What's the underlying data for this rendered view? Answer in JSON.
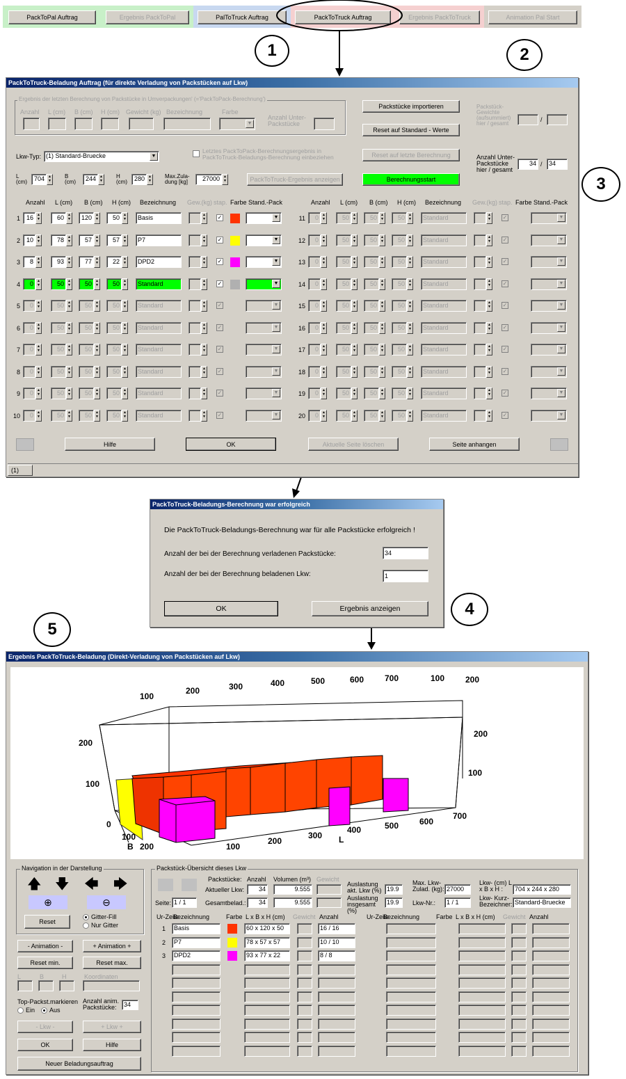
{
  "top_tabs": [
    "PackToPal Auftrag",
    "Ergebnis PackToPal",
    "PalToTruck Auftrag",
    "PackToTruck Auftrag",
    "Ergebnis PackToTruck",
    "Animation Pal Start"
  ],
  "callouts": [
    "1",
    "2",
    "3",
    "4",
    "5"
  ],
  "order": {
    "title": "PackToTruck-Beladung Auftrag (für direkte Verladung von Packstücken auf Lkw)",
    "prev_group": "Ergebnis der letzten Berechnung von Packstücke in Umverpackungen' (='PackToPack-Berechnung')",
    "prev_cols": [
      "Anzahl",
      "L (cm)",
      "B (cm)",
      "H (cm)",
      "Gewicht (kg)",
      "Bezeichnung",
      "Farbe",
      "Anzahl Unter-Packstücke"
    ],
    "btn_import": "Packstücke importieren",
    "btn_reset_std": "Reset auf Standard - Werte",
    "btn_reset_last": "Reset auf letzte Berechnung",
    "btn_calc": "Berechnungsstart",
    "btn_show_result": "PackToTruck-Ergebnis anzeigen",
    "weight_label": "Packstück-Gewichte (aufsummiert) hier / gesamt",
    "weight_sep": "/",
    "sub_label": "Anzahl Unter-Packstücke hier / gesamt",
    "sub_here": "34",
    "sub_total": "34",
    "sub_sep": "/",
    "truck_label": "Lkw-Typ:",
    "truck_value": "(1) Standard-Bruecke",
    "chk_label": "Letztes PackToPack-Berechnungsergebnis in PackToTruck-Beladungs-Berechnung einbeziehen",
    "dims": {
      "L_label": "L (cm)",
      "L": "704",
      "B_label": "B (cm)",
      "B": "244",
      "H_label": "H (cm)",
      "H": "280",
      "max_label": "Max.Zula-dung [kg]",
      "max": "27000"
    },
    "col_headers": [
      "Anzahl",
      "L (cm)",
      "B (cm)",
      "H (cm)",
      "Bezeichnung",
      "Gew.(kg)",
      "stap.",
      "Farbe",
      "Stand.-Pack"
    ],
    "rows": [
      {
        "n": "1",
        "anzahl": "16",
        "l": "60",
        "b": "120",
        "h": "50",
        "bez": "Basis",
        "color": "#ff3300",
        "state": "active"
      },
      {
        "n": "2",
        "anzahl": "10",
        "l": "78",
        "b": "57",
        "h": "57",
        "bez": "P7",
        "color": "#ffff00",
        "state": "active"
      },
      {
        "n": "3",
        "anzahl": "8",
        "l": "93",
        "b": "77",
        "h": "22",
        "bez": "DPD2",
        "color": "#ff00ff",
        "state": "active"
      },
      {
        "n": "4",
        "anzahl": "0",
        "l": "50",
        "b": "50",
        "h": "50",
        "bez": "Standard",
        "color": "#b0b0b0",
        "state": "green"
      },
      {
        "n": "5",
        "anzahl": "0",
        "l": "50",
        "b": "50",
        "h": "50",
        "bez": "Standard",
        "state": "dis"
      },
      {
        "n": "6",
        "anzahl": "0",
        "l": "50",
        "b": "50",
        "h": "50",
        "bez": "Standard",
        "state": "dis"
      },
      {
        "n": "7",
        "anzahl": "0",
        "l": "50",
        "b": "50",
        "h": "50",
        "bez": "Standard",
        "state": "dis"
      },
      {
        "n": "8",
        "anzahl": "0",
        "l": "50",
        "b": "50",
        "h": "50",
        "bez": "Standard",
        "state": "dis"
      },
      {
        "n": "9",
        "anzahl": "0",
        "l": "50",
        "b": "50",
        "h": "50",
        "bez": "Standard",
        "state": "dis"
      },
      {
        "n": "10",
        "anzahl": "0",
        "l": "50",
        "b": "50",
        "h": "50",
        "bez": "Standard",
        "state": "dis"
      },
      {
        "n": "11",
        "anzahl": "0",
        "l": "50",
        "b": "50",
        "h": "50",
        "bez": "Standard",
        "state": "dis"
      },
      {
        "n": "12",
        "anzahl": "0",
        "l": "50",
        "b": "50",
        "h": "50",
        "bez": "Standard",
        "state": "dis"
      },
      {
        "n": "13",
        "anzahl": "0",
        "l": "50",
        "b": "50",
        "h": "50",
        "bez": "Standard",
        "state": "dis"
      },
      {
        "n": "14",
        "anzahl": "0",
        "l": "50",
        "b": "50",
        "h": "50",
        "bez": "Standard",
        "state": "dis"
      },
      {
        "n": "15",
        "anzahl": "0",
        "l": "50",
        "b": "50",
        "h": "50",
        "bez": "Standard",
        "state": "dis"
      },
      {
        "n": "16",
        "anzahl": "0",
        "l": "50",
        "b": "50",
        "h": "50",
        "bez": "Standard",
        "state": "dis"
      },
      {
        "n": "17",
        "anzahl": "0",
        "l": "50",
        "b": "50",
        "h": "50",
        "bez": "Standard",
        "state": "dis"
      },
      {
        "n": "18",
        "anzahl": "0",
        "l": "50",
        "b": "50",
        "h": "50",
        "bez": "Standard",
        "state": "dis"
      },
      {
        "n": "19",
        "anzahl": "0",
        "l": "50",
        "b": "50",
        "h": "50",
        "bez": "Standard",
        "state": "dis"
      },
      {
        "n": "20",
        "anzahl": "0",
        "l": "50",
        "b": "50",
        "h": "50",
        "bez": "Standard",
        "state": "dis"
      }
    ],
    "btn_help": "Hilfe",
    "btn_ok": "OK",
    "btn_delete": "Aktuelle Seite löschen",
    "btn_append": "Seite anhangen",
    "page_tab": "(1)"
  },
  "dialog": {
    "title": "PackToTruck-Beladungs-Berechnung war erfolgreich",
    "message": "Die PackToTruck-Beladungs-Berechnung war für alle Packstücke erfolgreich !",
    "loaded_label": "Anzahl der bei der Berechnung verladenen Packstücke:",
    "loaded": "34",
    "trucks_label": "Anzahl der bei der Berechnung beladenen Lkw:",
    "trucks": "1",
    "ok": "OK",
    "show": "Ergebnis anzeigen"
  },
  "result": {
    "title": "Ergebnis PackToTruck-Beladung (Direkt-Verladung von Packstücken auf Lkw)",
    "axis": {
      "top_ticks": [
        "100",
        "200",
        "300",
        "400",
        "500",
        "600",
        "700",
        "100",
        "200"
      ],
      "right_ticks": [
        "200",
        "100"
      ],
      "bottom_l_ticks": [
        "100",
        "200",
        "300",
        "400",
        "500",
        "600",
        "700"
      ],
      "left_ticks": [
        "200",
        "100",
        "0"
      ],
      "b_ticks": [
        "100",
        "200"
      ],
      "L": "L",
      "B": "B"
    },
    "nav": {
      "group": "Navigation in der Darstellung",
      "reset": "Reset",
      "grid_fill": "Gitter-Fill",
      "only_grid": "Nur Gitter",
      "anim_minus": "- Animation -",
      "anim_plus": "+ Animation +",
      "reset_min": "Reset min.",
      "reset_max": "Reset max.",
      "L": "L",
      "B": "B",
      "H": "H",
      "coords": "Koordinaten",
      "top_mark": "Top-Packst.markieren",
      "on": "Ein",
      "off": "Aus",
      "anim_count_label": "Anzahl anim. Packstücke:",
      "anim_count": "34",
      "truck_minus": "- Lkw -",
      "truck_plus": "+ Lkw +",
      "ok": "OK",
      "help": "Hilfe",
      "new_order": "Neuer Beladungsauftrag"
    },
    "overview": {
      "group": "Packstück-Übersicht dieses Lkw",
      "packstuecke": "Packstücke:",
      "anzahl": "Anzahl",
      "volumen": "Volumen (m³)",
      "gewicht": "Gewicht",
      "akt_lkw": "Aktueller Lkw:",
      "akt_anzahl": "34",
      "akt_vol": "9.555",
      "gesamt": "Gesamtbelad.:",
      "ges_anzahl": "34",
      "ges_vol": "9.555",
      "seite": "Seite:",
      "seite_val": "1 / 1",
      "ausl_akt": "Auslastung akt. Lkw (%)",
      "ausl_akt_val": "19.9",
      "ausl_ges": "Auslastung insgesamt (%)",
      "ausl_ges_val": "19.9",
      "max_zul": "Max. Lkw-Zulad. (kg):",
      "max_zul_val": "27000",
      "lkw_nr": "Lkw-Nr.:",
      "lkw_nr_val": "1 / 1",
      "lkw_dims": "Lkw- (cm) L x B x H :",
      "lkw_dims_val": "704 x 244 x 280",
      "lkw_kurz": "Lkw- Kurz-Bezeichner:",
      "lkw_kurz_val": "Standard-Bruecke",
      "headers": [
        "Ur-Zeile",
        "Bezeichnung",
        "Farbe",
        "L x B x H (cm)",
        "Gewicht",
        "Anzahl"
      ],
      "rows": [
        {
          "n": "1",
          "bez": "Basis",
          "color": "#ff3300",
          "dim": "60 x 120 x 50",
          "anz": "16 / 16"
        },
        {
          "n": "2",
          "bez": "P7",
          "color": "#ffff00",
          "dim": "78 x 57 x 57",
          "anz": "10 / 10"
        },
        {
          "n": "3",
          "bez": "DPD2",
          "color": "#ff00ff",
          "dim": "93 x 77 x 22",
          "anz": "8 / 8"
        }
      ]
    }
  },
  "colors": {
    "red": "#ff3300",
    "yellow": "#ffff00",
    "magenta": "#ff00ff",
    "green": "#00ff00",
    "face": "#d4d0c8"
  }
}
